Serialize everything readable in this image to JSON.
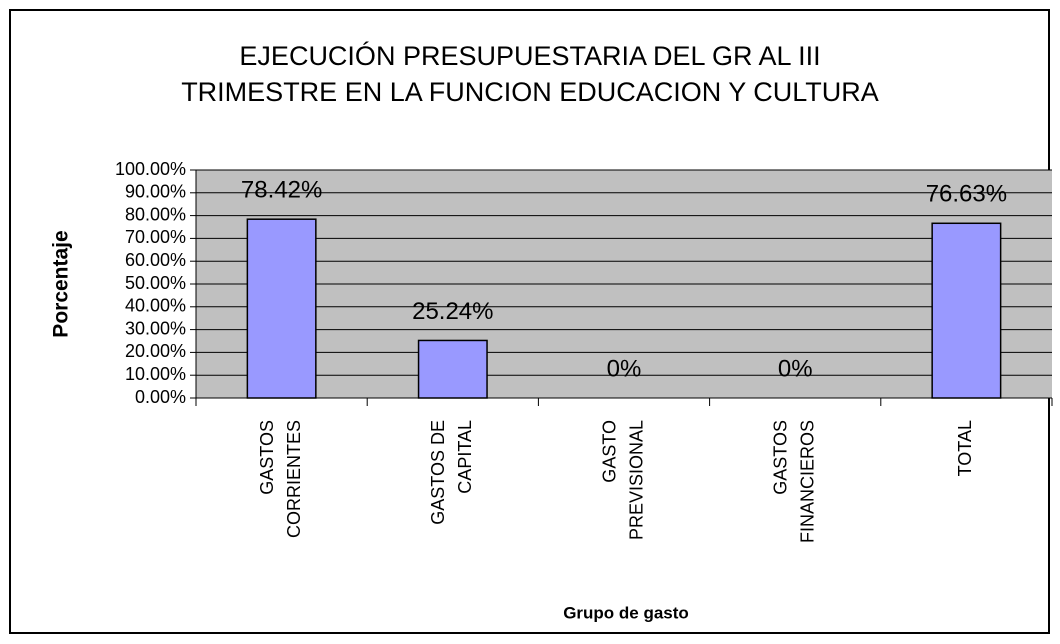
{
  "chart_data": {
    "type": "bar",
    "title": [
      "EJECUCIÓN PRESUPUESTARIA DEL GR AL III",
      "TRIMESTRE EN LA FUNCION EDUCACION Y CULTURA"
    ],
    "y_label": "Porcentaje",
    "x_label": "Grupo de gasto",
    "categories": [
      [
        "GASTOS",
        "CORRIENTES"
      ],
      [
        "GASTOS DE",
        "CAPITAL"
      ],
      [
        "GASTO",
        "PREVISIONAL"
      ],
      [
        "GASTOS",
        "FINANCIEROS"
      ],
      [
        "TOTAL"
      ]
    ],
    "values": [
      78.42,
      25.24,
      0,
      0,
      76.63
    ],
    "value_labels": [
      "78.42%",
      "25.24%",
      "0%",
      "0%",
      "76.63%"
    ],
    "color": "#9999ff",
    "ylim": [
      0,
      100
    ],
    "yticks": [
      {
        "value": 0,
        "label": "0.00%"
      },
      {
        "value": 10,
        "label": "10.00%"
      },
      {
        "value": 20,
        "label": "20.00%"
      },
      {
        "value": 30,
        "label": "30.00%"
      },
      {
        "value": 40,
        "label": "40.00%"
      },
      {
        "value": 50,
        "label": "50.00%"
      },
      {
        "value": 60,
        "label": "60.00%"
      },
      {
        "value": 70,
        "label": "70.00%"
      },
      {
        "value": 80,
        "label": "80.00%"
      },
      {
        "value": 90,
        "label": "90.00%"
      },
      {
        "value": 100,
        "label": "100.00%"
      }
    ],
    "grid": true
  }
}
